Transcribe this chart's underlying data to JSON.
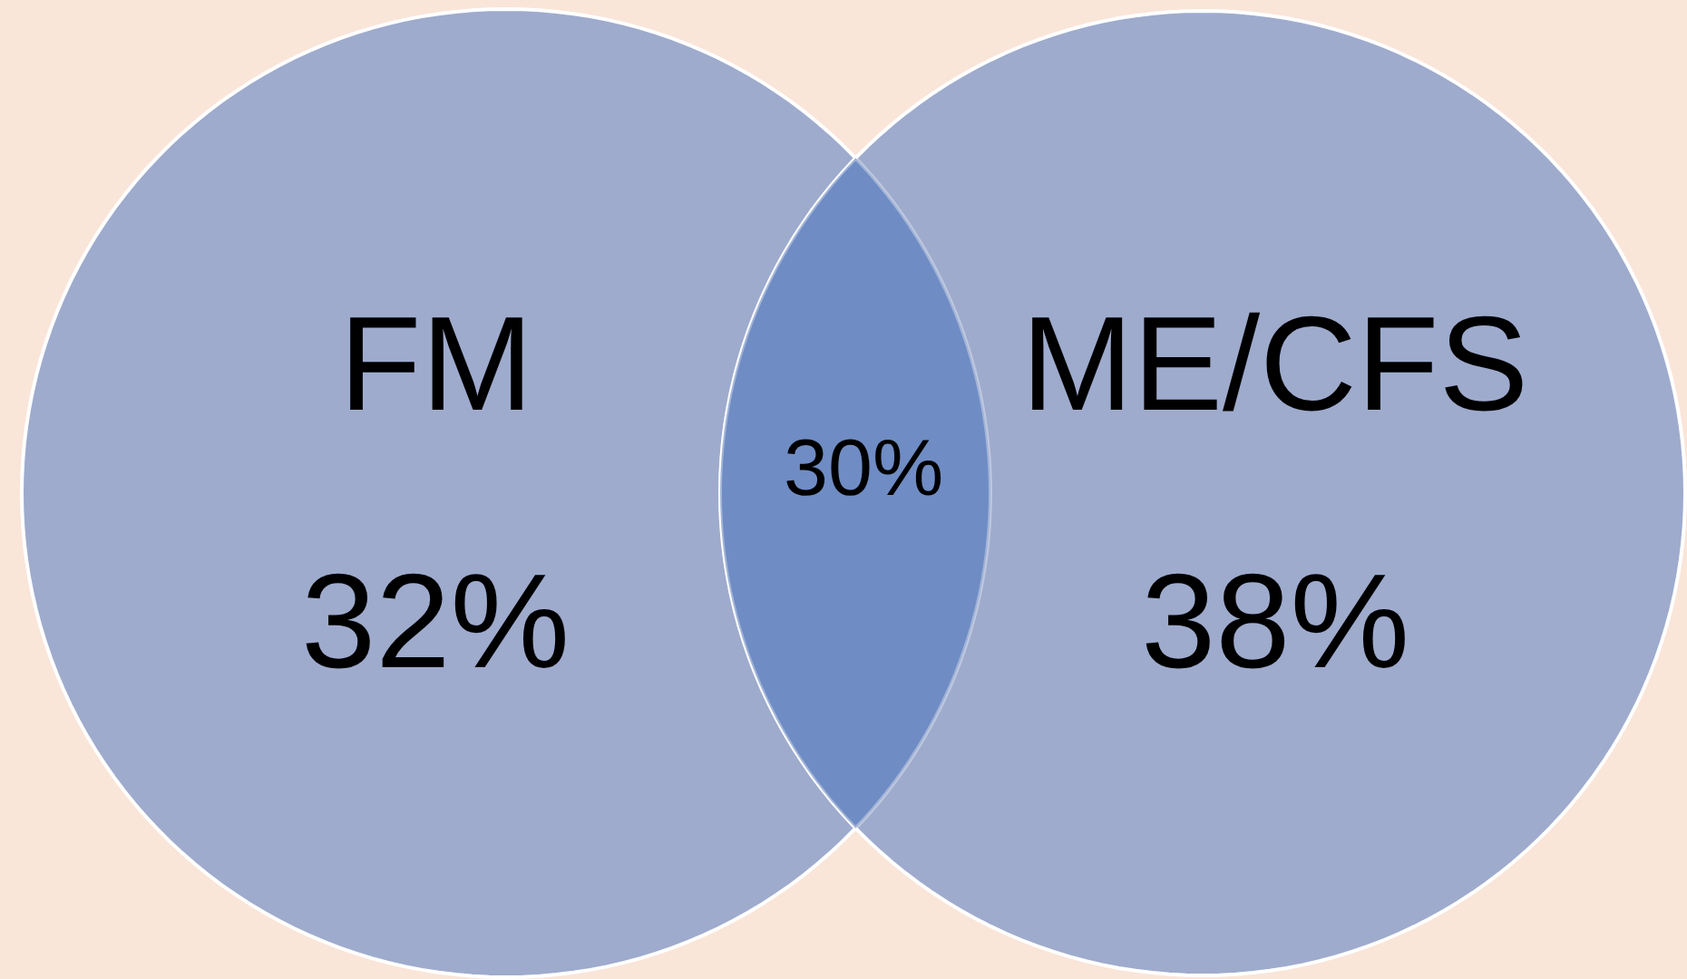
{
  "chart_data": {
    "type": "other",
    "categories": [
      "FM",
      "ME/CFS",
      null
    ],
    "values": [
      32,
      38,
      30
    ],
    "value_labels": [
      "32%",
      "38%",
      "30%"
    ],
    "colors": [
      "#9eabcd",
      "#9eabcd",
      "#6f8cc4"
    ]
  }
}
